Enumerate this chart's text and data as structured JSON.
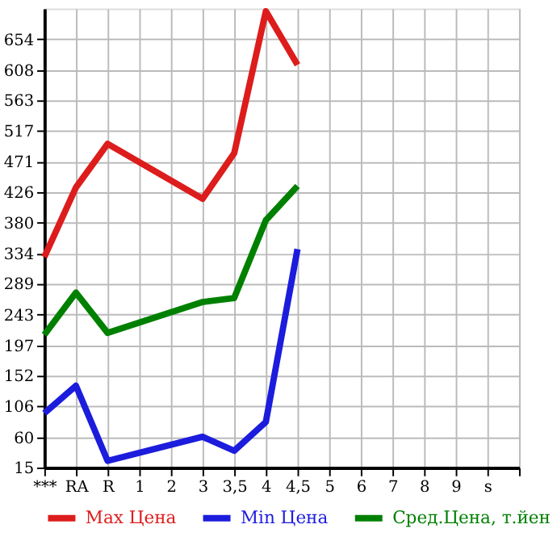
{
  "chart_data": {
    "type": "line",
    "categories": [
      "***",
      "RA",
      "R",
      "1",
      "2",
      "3",
      "3,5",
      "4",
      "4,5",
      "5",
      "6",
      "7",
      "8",
      "9",
      "s"
    ],
    "series": [
      {
        "name": "Max Цена",
        "color": "#dd1c1c",
        "values": [
          329,
          433,
          498,
          null,
          null,
          416,
          484,
          696,
          616,
          null,
          null,
          null,
          null,
          null,
          null
        ]
      },
      {
        "name": "Min Цена",
        "color": "#1c1cdd",
        "values": [
          96,
          137,
          25,
          null,
          null,
          61,
          40,
          83,
          341,
          null,
          null,
          null,
          null,
          null,
          null
        ]
      },
      {
        "name": "Сред.Цена, т.йен",
        "color": "#008000",
        "values": [
          213,
          276,
          216,
          null,
          null,
          262,
          268,
          384,
          435,
          null,
          null,
          null,
          null,
          null,
          null
        ]
      }
    ],
    "ylim": [
      15,
      700
    ],
    "yticks": [
      15,
      60,
      106,
      152,
      197,
      243,
      289,
      334,
      380,
      426,
      471,
      517,
      563,
      608,
      654
    ],
    "grid": true,
    "legend": "bottom",
    "marker": "none",
    "line_style": "solid"
  }
}
